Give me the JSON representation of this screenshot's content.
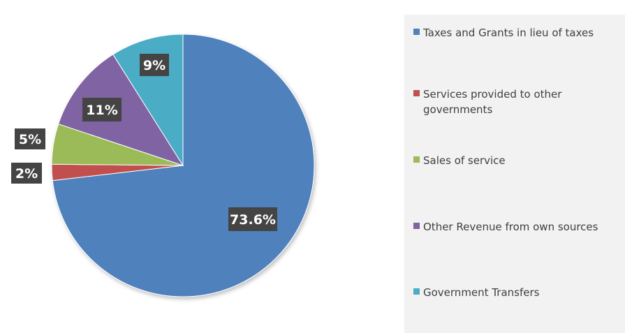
{
  "chart_data": {
    "type": "pie",
    "title": "",
    "start_angle_deg": 0,
    "direction": "clockwise",
    "slices": [
      {
        "name": "Taxes and Grants in lieu of taxes",
        "value": 73.6,
        "label": "73.6%",
        "color": "#4f81bd"
      },
      {
        "name": "Services provided to other governments",
        "value": 2,
        "label": "2%",
        "color": "#c0504d"
      },
      {
        "name": "Sales of service",
        "value": 5,
        "label": "5%",
        "color": "#9bbb59"
      },
      {
        "name": "Other Revenue from own sources",
        "value": 11,
        "label": "11%",
        "color": "#8064a2"
      },
      {
        "name": "Government Transfers",
        "value": 9,
        "label": "9%",
        "color": "#4bacc6"
      }
    ],
    "legend_position": "right"
  },
  "legend": {
    "items": [
      {
        "label": "Taxes and Grants in lieu of taxes",
        "color": "#4f81bd"
      },
      {
        "label": "Services provided to other governments",
        "color": "#c0504d"
      },
      {
        "label": "Sales of service",
        "color": "#9bbb59"
      },
      {
        "label": "Other Revenue from own sources",
        "color": "#8064a2"
      },
      {
        "label": "Government Transfers",
        "color": "#4bacc6"
      }
    ]
  },
  "colors": {
    "label_box": "#404040",
    "legend_background": "#f2f2f2",
    "legend_text": "#404040"
  }
}
